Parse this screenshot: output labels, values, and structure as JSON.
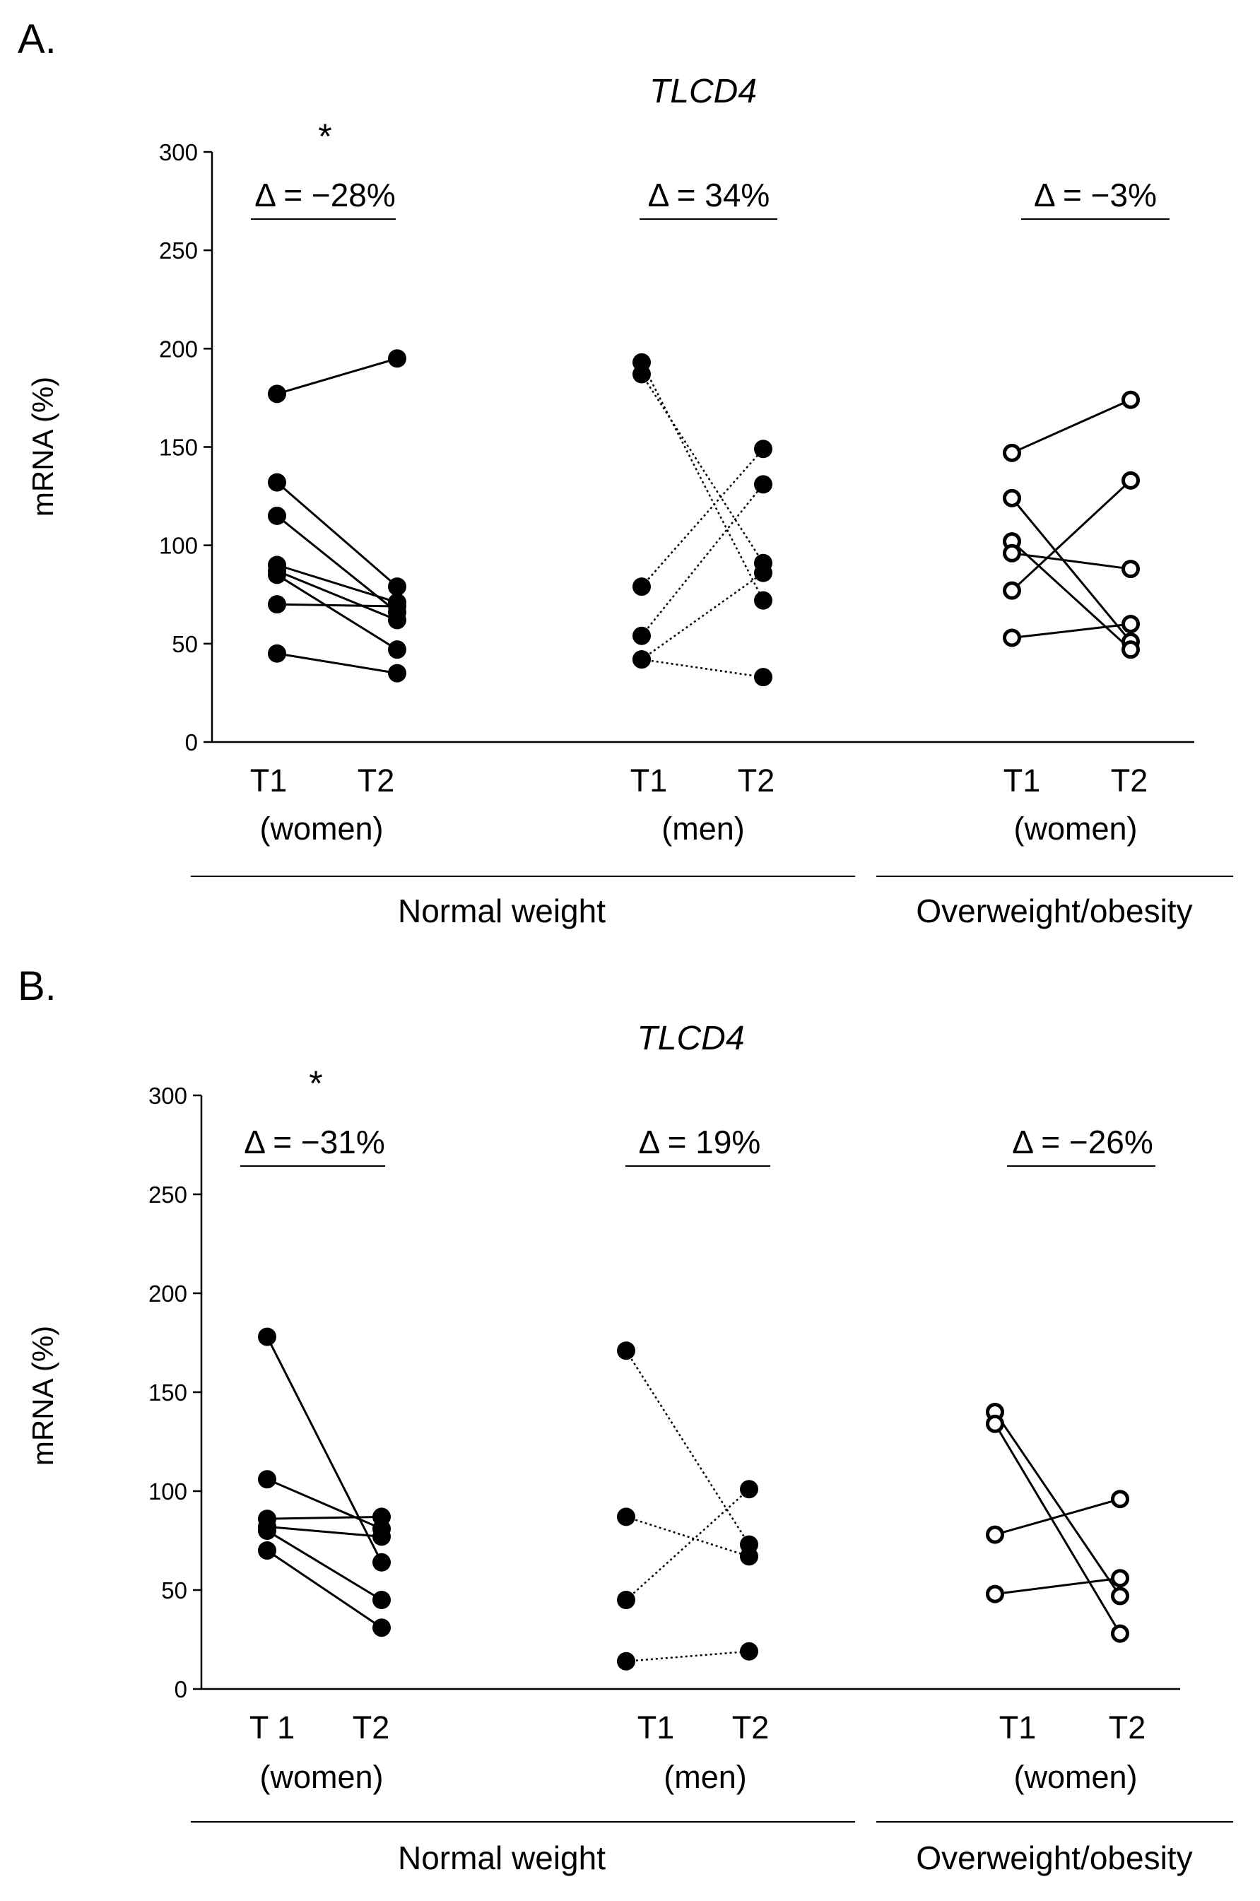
{
  "chart_data": [
    {
      "panel": "A.",
      "type": "scatter",
      "title": "TLCD4",
      "ylabel": "mRNA (%)",
      "ylim": [
        0,
        300
      ],
      "yticks": [
        0,
        50,
        100,
        150,
        200,
        250,
        300
      ],
      "groups": [
        {
          "sex": "(women)",
          "timepoints": [
            "T1",
            "T2"
          ],
          "delta": "Δ = −28%",
          "significance": "*",
          "category": "Normal weight",
          "marker": "filled",
          "line": "solid",
          "pairs": [
            [
              177,
              195
            ],
            [
              132,
              79
            ],
            [
              115,
              66
            ],
            [
              90,
              71
            ],
            [
              87,
              62
            ],
            [
              85,
              47
            ],
            [
              70,
              69
            ],
            [
              45,
              35
            ]
          ]
        },
        {
          "sex": "(men)",
          "timepoints": [
            "T1",
            "T2"
          ],
          "delta": "Δ = 34%",
          "significance": "",
          "category": "Normal weight",
          "marker": "filled",
          "line": "dotted",
          "pairs": [
            [
              193,
              72
            ],
            [
              187,
              91
            ],
            [
              79,
              149
            ],
            [
              54,
              131
            ],
            [
              42,
              86
            ],
            [
              42,
              33
            ]
          ]
        },
        {
          "sex": "(women)",
          "timepoints": [
            "T1",
            "T2"
          ],
          "delta": "Δ = −3%",
          "significance": "",
          "category": "Overweight/obesity",
          "marker": "open",
          "line": "solid",
          "pairs": [
            [
              147,
              174
            ],
            [
              124,
              51
            ],
            [
              102,
              47
            ],
            [
              96,
              88
            ],
            [
              77,
              133
            ],
            [
              53,
              60
            ]
          ]
        }
      ],
      "categories": [
        "Normal weight",
        "Overweight/obesity"
      ]
    },
    {
      "panel": "B.",
      "type": "scatter",
      "title": "TLCD4",
      "ylabel": "mRNA (%)",
      "ylim": [
        0,
        300
      ],
      "yticks": [
        0,
        50,
        100,
        150,
        200,
        250,
        300
      ],
      "groups": [
        {
          "sex": "(women)",
          "timepoints": [
            "T 1",
            "T2"
          ],
          "delta": "Δ = −31%",
          "significance": "*",
          "category": "Normal weight",
          "marker": "filled",
          "line": "solid",
          "pairs": [
            [
              178,
              64
            ],
            [
              106,
              81
            ],
            [
              86,
              87
            ],
            [
              82,
              77
            ],
            [
              80,
              45
            ],
            [
              70,
              31
            ]
          ]
        },
        {
          "sex": "(men)",
          "timepoints": [
            "T1",
            "T2"
          ],
          "delta": "Δ = 19%",
          "significance": "",
          "category": "Normal weight",
          "marker": "filled",
          "line": "dotted",
          "pairs": [
            [
              171,
              73
            ],
            [
              87,
              67
            ],
            [
              45,
              101
            ],
            [
              14,
              19
            ]
          ]
        },
        {
          "sex": "(women)",
          "timepoints": [
            "T1",
            "T2"
          ],
          "delta": "Δ = −26%",
          "significance": "",
          "category": "Overweight/obesity",
          "marker": "open",
          "line": "solid",
          "pairs": [
            [
              140,
              47
            ],
            [
              134,
              28
            ],
            [
              78,
              96
            ],
            [
              48,
              56
            ]
          ]
        }
      ],
      "categories": [
        "Normal weight",
        "Overweight/obesity"
      ]
    }
  ],
  "colors": {
    "ink": "#000000",
    "background": "#ffffff"
  }
}
